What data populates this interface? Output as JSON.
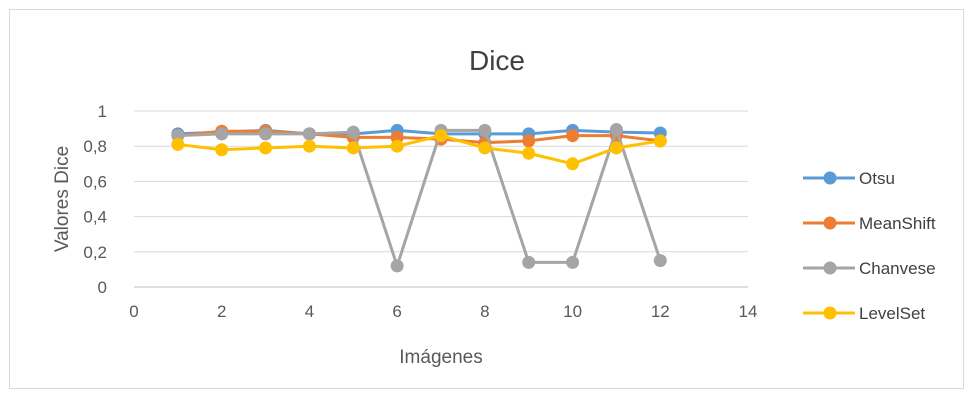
{
  "chart_data": {
    "type": "line",
    "title": "Dice",
    "xlabel": "Imágenes",
    "ylabel": "Valores Dice",
    "xlim": [
      0,
      14
    ],
    "ylim": [
      0,
      1
    ],
    "x_ticks": [
      "0",
      "2",
      "4",
      "6",
      "8",
      "10",
      "12",
      "14"
    ],
    "y_ticks": [
      "0",
      "0,2",
      "0,4",
      "0,6",
      "0,8",
      "1"
    ],
    "grid": "horizontal",
    "legend_position": "right",
    "x": [
      1,
      2,
      3,
      4,
      5,
      6,
      7,
      8,
      9,
      10,
      11,
      12
    ],
    "series": [
      {
        "name": "Otsu",
        "color": "#5b9bd5",
        "values": [
          0.87,
          0.88,
          0.89,
          0.87,
          0.87,
          0.89,
          0.87,
          0.87,
          0.87,
          0.89,
          0.88,
          0.875
        ]
      },
      {
        "name": "MeanShift",
        "color": "#ed7d31",
        "values": [
          0.86,
          0.885,
          0.885,
          0.87,
          0.85,
          0.85,
          0.84,
          0.82,
          0.83,
          0.86,
          0.86,
          0.83
        ]
      },
      {
        "name": "Chanvese",
        "color": "#a5a5a5",
        "values": [
          0.86,
          0.87,
          0.87,
          0.87,
          0.88,
          0.12,
          0.89,
          0.89,
          0.14,
          0.14,
          0.895,
          0.15
        ]
      },
      {
        "name": "LevelSet",
        "color": "#ffc000",
        "values": [
          0.81,
          0.78,
          0.79,
          0.8,
          0.79,
          0.8,
          0.86,
          0.79,
          0.76,
          0.7,
          0.79,
          0.83
        ]
      }
    ]
  }
}
